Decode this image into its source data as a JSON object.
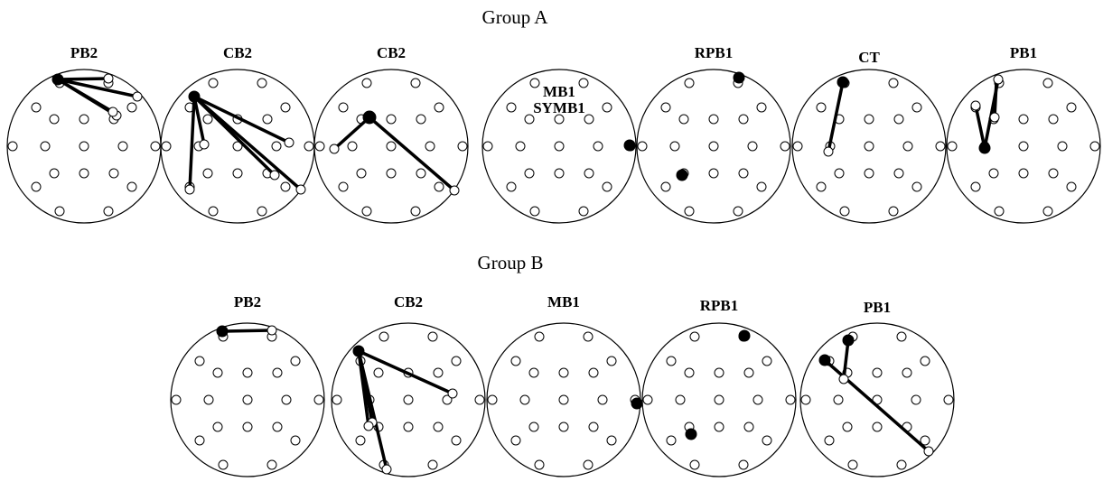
{
  "groups": [
    {
      "title": "Group A",
      "heads": [
        {
          "label": "PB2",
          "sublabel": "",
          "key": "A-PB2"
        },
        {
          "label": "CB2",
          "sublabel": "",
          "key": "A-CB2a"
        },
        {
          "label": "CB2",
          "sublabel": "",
          "key": "A-CB2b"
        },
        {
          "label": "MB1",
          "sublabel": "SYMB1",
          "key": "A-MB1"
        },
        {
          "label": "RPB1",
          "sublabel": "",
          "key": "A-RPB1"
        },
        {
          "label": "CT",
          "sublabel": "",
          "key": "A-CT"
        },
        {
          "label": "PB1",
          "sublabel": "",
          "key": "A-PB1"
        }
      ]
    },
    {
      "title": "Group B",
      "heads": [
        {
          "label": "PB2",
          "sublabel": "",
          "key": "B-PB2"
        },
        {
          "label": "CB2",
          "sublabel": "",
          "key": "B-CB2"
        },
        {
          "label": "MB1",
          "sublabel": "",
          "key": "B-MB1"
        },
        {
          "label": "RPB1",
          "sublabel": "",
          "key": "B-RPB1"
        },
        {
          "label": "PB1",
          "sublabel": "",
          "key": "B-PB1"
        }
      ]
    }
  ],
  "colors": {
    "ink": "#000000",
    "background": "#ffffff"
  }
}
